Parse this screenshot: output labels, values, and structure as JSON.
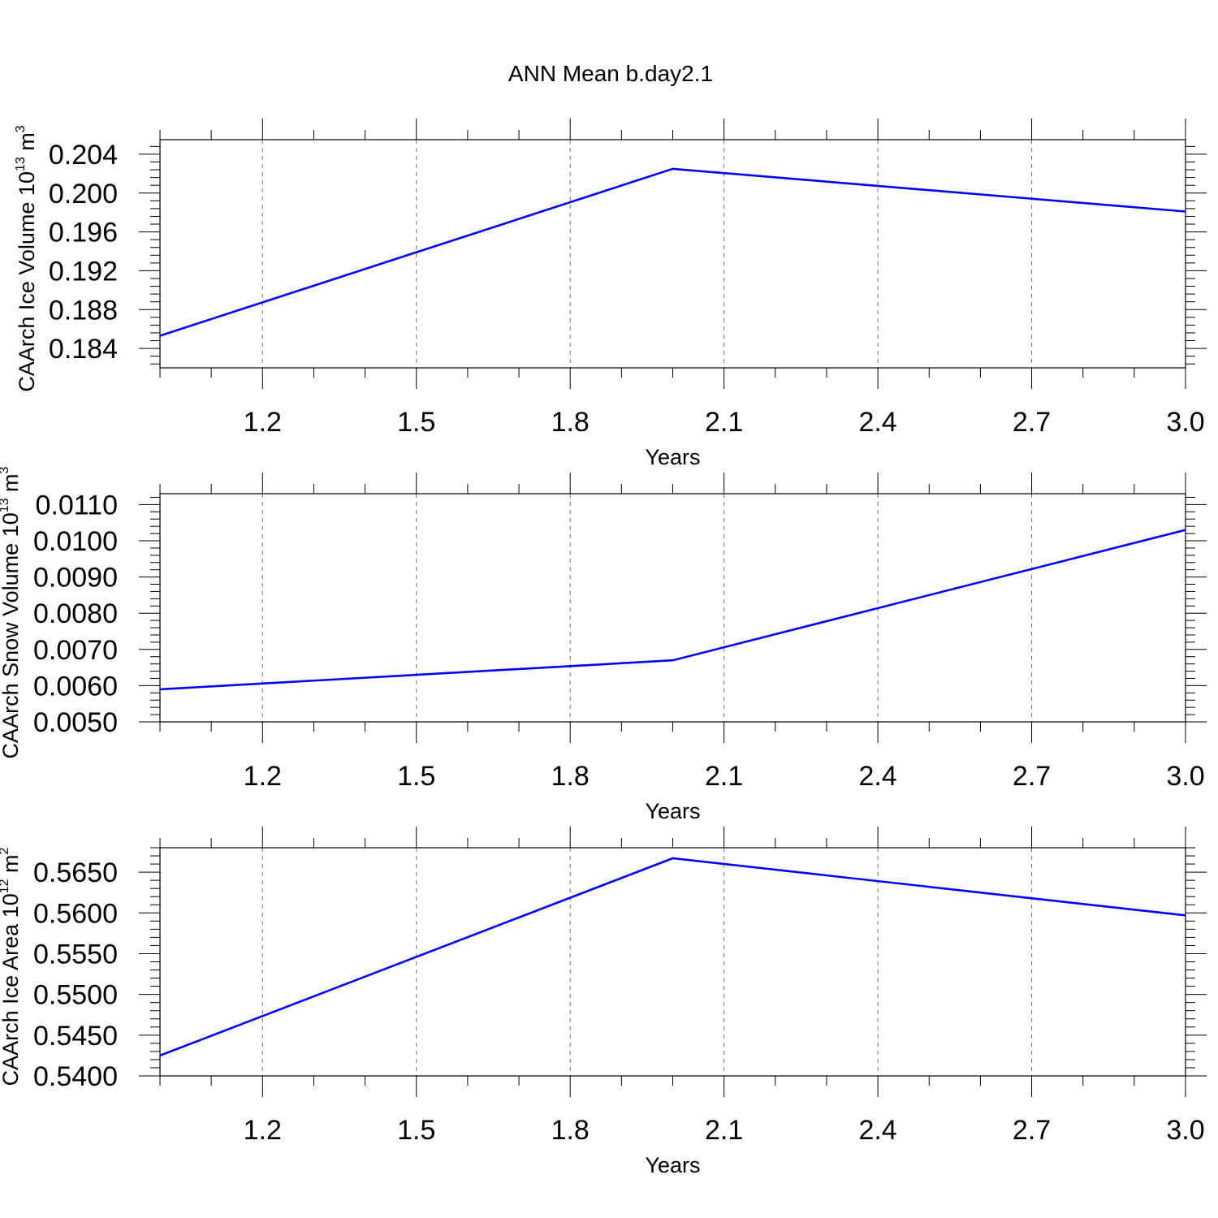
{
  "title": "ANN Mean b.day2.1",
  "colors": {
    "series": "#0000ff",
    "axis": "#000000",
    "grid": "#000000"
  },
  "chart_data": [
    {
      "type": "line",
      "ylabel_main": "CAArch Ice Volume 10",
      "ylabel_exp": "13",
      "ylabel_unit": " m",
      "ylabel_unit_exp": "3",
      "xlabel": "Years",
      "xlim": [
        1.0,
        3.0
      ],
      "ylim": [
        0.182,
        0.2055
      ],
      "xticks": [
        "1.2",
        "1.5",
        "1.8",
        "2.1",
        "2.4",
        "2.7",
        "3.0"
      ],
      "yticks": [
        "0.184",
        "0.188",
        "0.192",
        "0.196",
        "0.200",
        "0.204"
      ],
      "grid": "vertical-dashed",
      "series": [
        {
          "x": [
            1,
            2,
            3
          ],
          "values": [
            0.1853,
            0.2025,
            0.1981
          ]
        }
      ]
    },
    {
      "type": "line",
      "ylabel_main": "CAArch Snow Volume 10",
      "ylabel_exp": "13",
      "ylabel_unit": " m",
      "ylabel_unit_exp": "3",
      "xlabel": "Years",
      "xlim": [
        1.0,
        3.0
      ],
      "ylim": [
        0.005,
        0.0113
      ],
      "xticks": [
        "1.2",
        "1.5",
        "1.8",
        "2.1",
        "2.4",
        "2.7",
        "3.0"
      ],
      "yticks": [
        "0.0050",
        "0.0060",
        "0.0070",
        "0.0080",
        "0.0090",
        "0.0100",
        "0.0110"
      ],
      "grid": "vertical-dashed",
      "series": [
        {
          "x": [
            1,
            2,
            3
          ],
          "values": [
            0.0059,
            0.0067,
            0.0103
          ]
        }
      ]
    },
    {
      "type": "line",
      "ylabel_main": "CAArch Ice Area 10",
      "ylabel_exp": "12",
      "ylabel_unit": " m",
      "ylabel_unit_exp": "2",
      "xlabel": "Years",
      "xlim": [
        1.0,
        3.0
      ],
      "ylim": [
        0.54,
        0.568
      ],
      "xticks": [
        "1.2",
        "1.5",
        "1.8",
        "2.1",
        "2.4",
        "2.7",
        "3.0"
      ],
      "yticks": [
        "0.5400",
        "0.5450",
        "0.5500",
        "0.5550",
        "0.5600",
        "0.5650"
      ],
      "grid": "vertical-dashed",
      "series": [
        {
          "x": [
            1,
            2,
            3
          ],
          "values": [
            0.5425,
            0.5667,
            0.5597
          ]
        }
      ]
    }
  ]
}
